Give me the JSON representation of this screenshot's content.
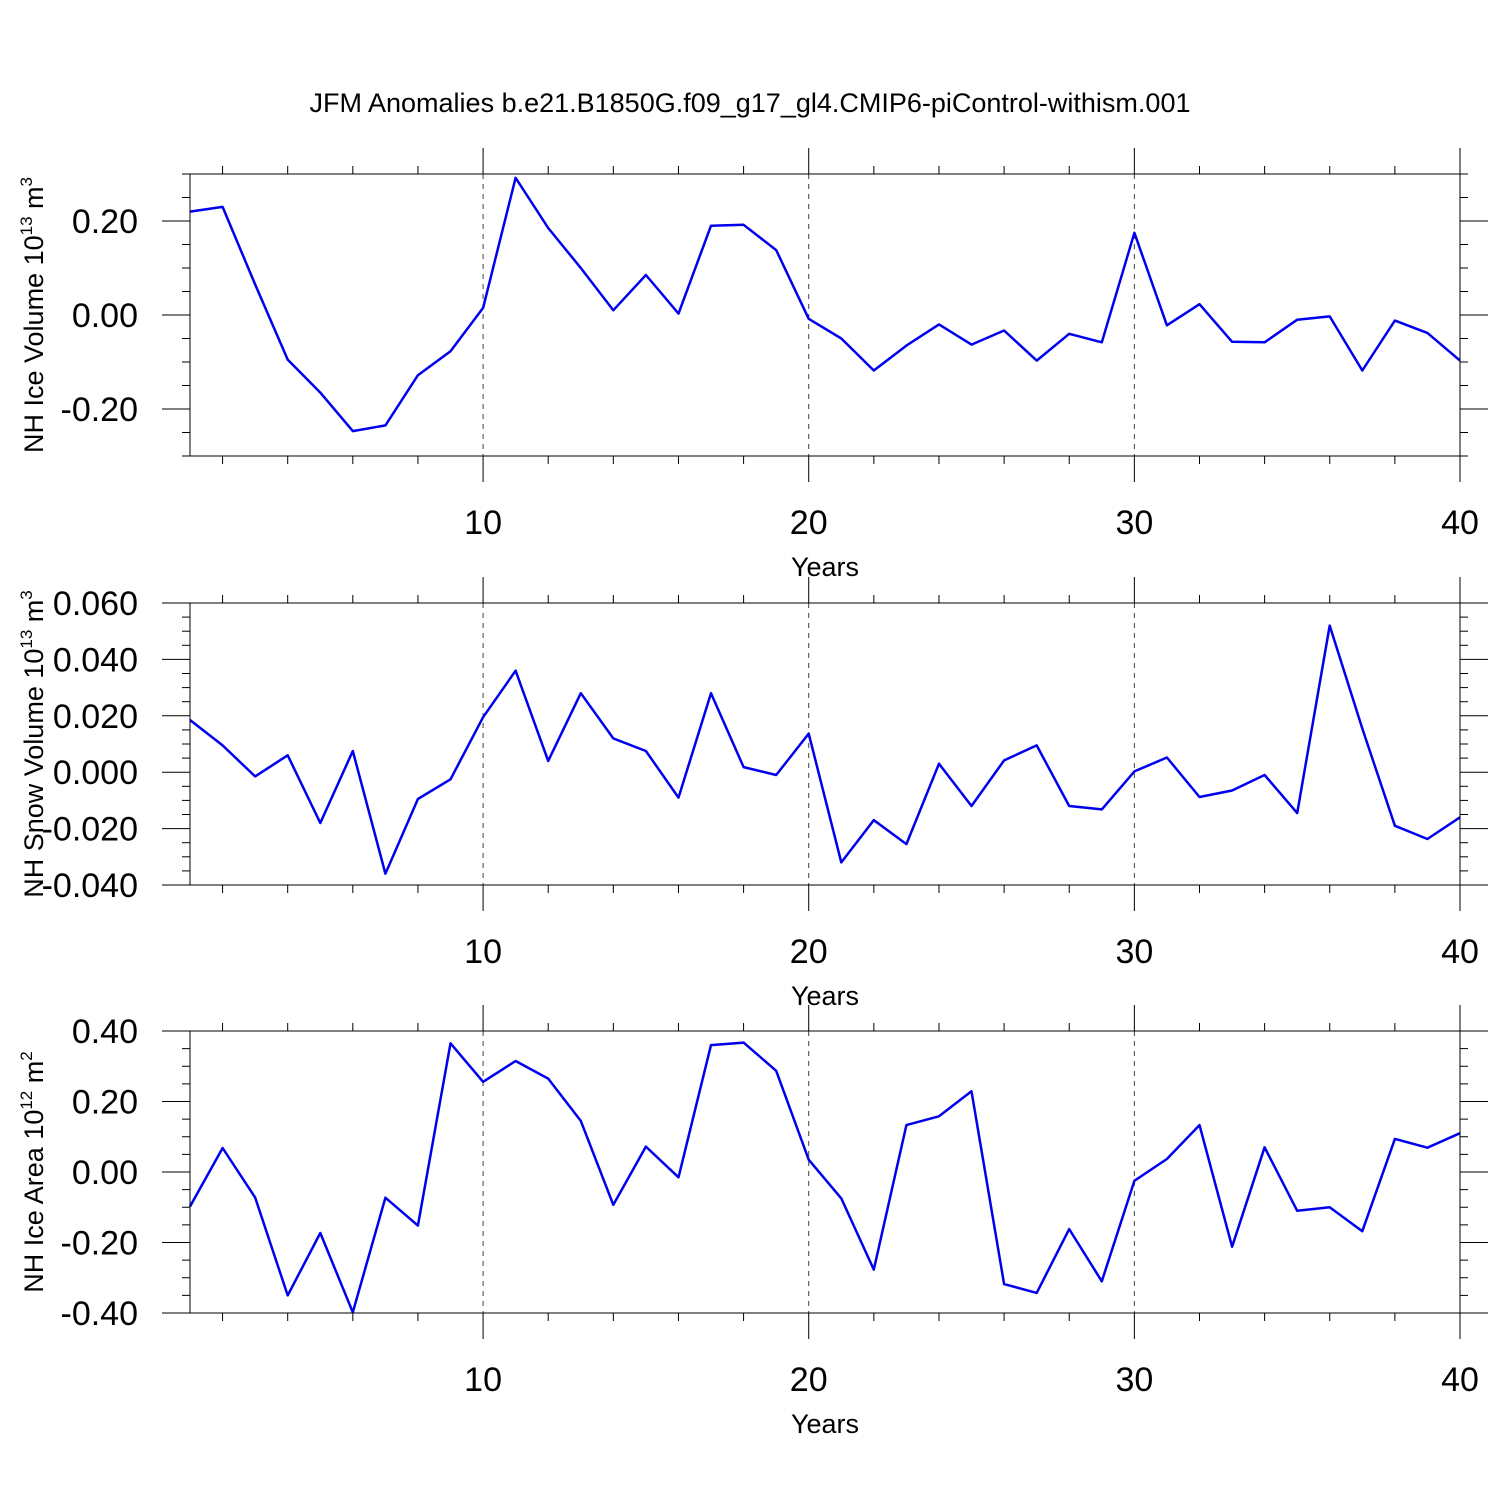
{
  "chart_data": {
    "title": "JFM Anomalies b.e21.B1850G.f09_g17_gl4.CMIP6-piControl-withism.001",
    "line_color": "#0000ee",
    "grid": "vertical dashed at major x ticks",
    "panels": [
      {
        "type": "line",
        "ylabel_main": "NH Ice Volume 10",
        "ylabel_exp": "13",
        "ylabel_unit": " m",
        "ylabel_unit_exp": "3",
        "xlabel": "Years",
        "xlim": [
          1,
          40
        ],
        "ylim": [
          -0.3,
          0.3
        ],
        "yticks": [
          -0.2,
          0,
          0.2
        ],
        "ytick_labels": [
          "-0.20",
          "0.00",
          "0.20"
        ],
        "xticks": [
          10,
          20,
          30,
          40
        ],
        "xtick_labels": [
          "10",
          "20",
          "30",
          "40"
        ],
        "x": [
          1,
          2,
          3,
          4,
          5,
          6,
          7,
          8,
          9,
          10,
          11,
          12,
          13,
          14,
          15,
          16,
          17,
          18,
          19,
          20,
          21,
          22,
          23,
          24,
          25,
          26,
          27,
          28,
          29,
          30,
          31,
          32,
          33,
          34,
          35,
          36,
          37,
          38,
          39,
          40
        ],
        "values": [
          0.22,
          0.23,
          0.065,
          -0.095,
          -0.165,
          -0.247,
          -0.235,
          -0.128,
          -0.077,
          0.015,
          0.292,
          0.185,
          0.1,
          0.01,
          0.085,
          0.003,
          0.19,
          0.192,
          0.138,
          -0.008,
          -0.05,
          -0.118,
          -0.065,
          -0.02,
          -0.063,
          -0.033,
          -0.097,
          -0.04,
          -0.058,
          0.175,
          -0.022,
          0.023,
          -0.057,
          -0.058,
          -0.01,
          -0.003,
          -0.118,
          -0.012,
          -0.038,
          -0.097
        ]
      },
      {
        "type": "line",
        "ylabel_main": "NH Snow Volume 10",
        "ylabel_exp": "13",
        "ylabel_unit": " m",
        "ylabel_unit_exp": "3",
        "xlabel": "Years",
        "xlim": [
          1,
          40
        ],
        "ylim": [
          -0.04,
          0.06
        ],
        "yticks": [
          -0.04,
          -0.02,
          0,
          0.02,
          0.04,
          0.06
        ],
        "ytick_labels": [
          "-0.040",
          "-0.020",
          "0.000",
          "0.020",
          "0.040",
          "0.060"
        ],
        "xticks": [
          10,
          20,
          30,
          40
        ],
        "xtick_labels": [
          "10",
          "20",
          "30",
          "40"
        ],
        "x": [
          1,
          2,
          3,
          4,
          5,
          6,
          7,
          8,
          9,
          10,
          11,
          12,
          13,
          14,
          15,
          16,
          17,
          18,
          19,
          20,
          21,
          22,
          23,
          24,
          25,
          26,
          27,
          28,
          29,
          30,
          31,
          32,
          33,
          34,
          35,
          36,
          37,
          38,
          39,
          40
        ],
        "values": [
          0.0185,
          0.0095,
          -0.0015,
          0.006,
          -0.018,
          0.0075,
          -0.036,
          -0.0095,
          -0.0025,
          0.0195,
          0.036,
          0.004,
          0.028,
          0.012,
          0.0075,
          -0.009,
          0.028,
          0.0018,
          -0.001,
          0.0137,
          -0.032,
          -0.017,
          -0.0255,
          0.003,
          -0.012,
          0.0042,
          0.0095,
          -0.012,
          -0.0132,
          0.0003,
          0.0052,
          -0.0088,
          -0.0065,
          -0.001,
          -0.0145,
          0.052,
          0.0155,
          -0.019,
          -0.0237,
          -0.016
        ]
      },
      {
        "type": "line",
        "ylabel_main": "NH Ice Area 10",
        "ylabel_exp": "12",
        "ylabel_unit": " m",
        "ylabel_unit_exp": "2",
        "xlabel": "Years",
        "xlim": [
          1,
          40
        ],
        "ylim": [
          -0.4,
          0.4
        ],
        "yticks": [
          -0.4,
          -0.2,
          0,
          0.2,
          0.4
        ],
        "ytick_labels": [
          "-0.40",
          "-0.20",
          "0.00",
          "0.20",
          "0.40"
        ],
        "xticks": [
          10,
          20,
          30,
          40
        ],
        "xtick_labels": [
          "10",
          "20",
          "30",
          "40"
        ],
        "x": [
          1,
          2,
          3,
          4,
          5,
          6,
          7,
          8,
          9,
          10,
          11,
          12,
          13,
          14,
          15,
          16,
          17,
          18,
          19,
          20,
          21,
          22,
          23,
          24,
          25,
          26,
          27,
          28,
          29,
          30,
          31,
          32,
          33,
          34,
          35,
          36,
          37,
          38,
          39,
          40
        ],
        "values": [
          -0.098,
          0.068,
          -0.072,
          -0.35,
          -0.173,
          -0.398,
          -0.073,
          -0.152,
          0.365,
          0.256,
          0.315,
          0.265,
          0.145,
          -0.093,
          0.072,
          -0.015,
          0.36,
          0.367,
          0.287,
          0.035,
          -0.075,
          -0.277,
          0.133,
          0.158,
          0.229,
          -0.318,
          -0.343,
          -0.162,
          -0.31,
          -0.025,
          0.037,
          0.133,
          -0.212,
          0.07,
          -0.11,
          -0.1,
          -0.168,
          0.094,
          0.069,
          0.11
        ]
      }
    ]
  }
}
